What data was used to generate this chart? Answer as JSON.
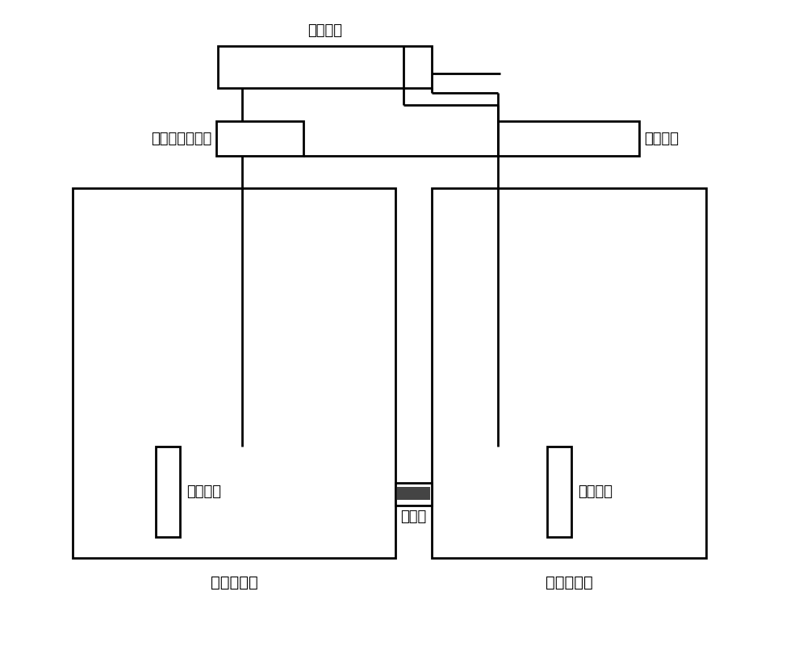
{
  "bg_color": "#ffffff",
  "line_color": "#000000",
  "lw_thin": 1.5,
  "lw_thick": 2.0,
  "label_dc": "直流电源",
  "label_controller": "电源输出控制器",
  "label_detector": "检测仪表",
  "label_tank1": "第一导电池",
  "label_tank2": "第二导电池",
  "label_anode": "正极电极",
  "label_cathode": "负极电极",
  "label_microchannel": "微通道",
  "font_size": 13,
  "font_size_tank": 14,
  "fig_w": 10.0,
  "fig_h": 8.26,
  "dpi": 100
}
